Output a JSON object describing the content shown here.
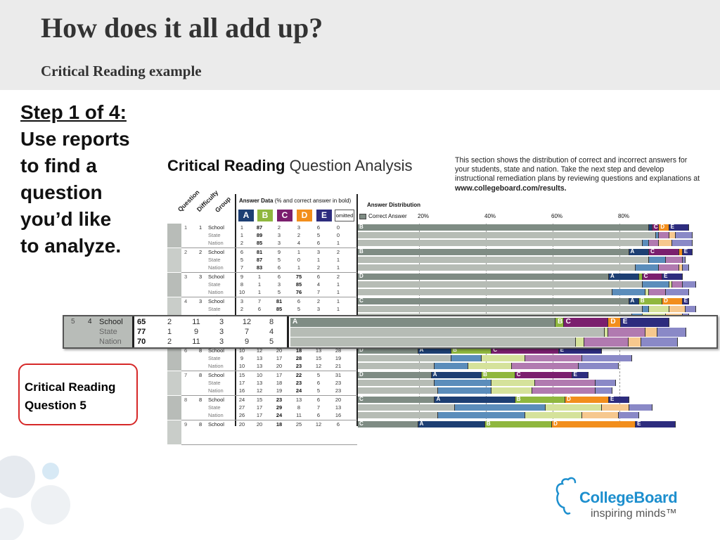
{
  "slide": {
    "title": "How does it all add up?",
    "subtitle": "Critical Reading example"
  },
  "step": {
    "heading": "Step 1 of 4:",
    "lines": [
      "Use reports",
      "to find a",
      "question",
      "you’d like",
      "to analyze."
    ]
  },
  "callout": {
    "lines": [
      "Critical Reading",
      "Question 5"
    ],
    "border_color": "#d62828"
  },
  "report": {
    "title_bold": "Critical Reading",
    "title_light": "Question Analysis",
    "description": "This section shows the distribution of correct and incorrect answers for your students, state and nation. Take the next step and develop instructional remediation plans by reviewing questions and explanations at",
    "url": "www.collegeboard.com/results.",
    "column_labels": {
      "question": "Question",
      "difficulty": "Difficulty",
      "group": "Group"
    },
    "answer_data_label": "Answer Data",
    "answer_data_note": "(% and correct answer in bold)",
    "answer_letters": [
      {
        "letter": "A",
        "color": "#1d3f73"
      },
      {
        "letter": "B",
        "color": "#8fb73e"
      },
      {
        "letter": "C",
        "color": "#7b1f6e"
      },
      {
        "letter": "D",
        "color": "#f28e1c"
      },
      {
        "letter": "E",
        "color": "#2d2c7e"
      }
    ],
    "omitted_label": "omitted",
    "distribution_label": "Answer Distribution",
    "legend_label": "Correct Answer",
    "ticks": [
      "20%",
      "40%",
      "60%",
      "80%"
    ],
    "rows": [
      {
        "q": "1",
        "d": "1",
        "groups": [
          {
            "name": "School",
            "vals": [
              "1",
              "87",
              "2",
              "3",
              "6",
              "0"
            ],
            "correct": 1
          },
          {
            "name": "State",
            "vals": [
              "1",
              "89",
              "3",
              "2",
              "5",
              "0"
            ],
            "correct": 1
          },
          {
            "name": "Nation",
            "vals": [
              "2",
              "85",
              "3",
              "4",
              "6",
              "1"
            ],
            "correct": 1
          }
        ]
      },
      {
        "q": "2",
        "d": "2",
        "groups": [
          {
            "name": "School",
            "vals": [
              "6",
              "81",
              "9",
              "1",
              "3",
              "2"
            ],
            "correct": 1
          },
          {
            "name": "State",
            "vals": [
              "5",
              "87",
              "5",
              "0",
              "1",
              "1"
            ],
            "correct": 1
          },
          {
            "name": "Nation",
            "vals": [
              "7",
              "83",
              "6",
              "1",
              "2",
              "1"
            ],
            "correct": 1
          }
        ]
      },
      {
        "q": "3",
        "d": "3",
        "groups": [
          {
            "name": "School",
            "vals": [
              "9",
              "1",
              "6",
              "75",
              "6",
              "2"
            ],
            "correct": 3
          },
          {
            "name": "State",
            "vals": [
              "8",
              "1",
              "3",
              "85",
              "4",
              "1"
            ],
            "correct": 3
          },
          {
            "name": "Nation",
            "vals": [
              "10",
              "1",
              "5",
              "76",
              "7",
              "1"
            ],
            "correct": 3
          }
        ]
      },
      {
        "q": "4",
        "d": "3",
        "groups": [
          {
            "name": "School",
            "vals": [
              "3",
              "7",
              "81",
              "6",
              "2",
              "1"
            ],
            "correct": 2
          },
          {
            "name": "State",
            "vals": [
              "2",
              "6",
              "85",
              "5",
              "3",
              "1"
            ],
            "correct": 2
          },
          {
            "name": "Nation",
            "vals": [
              "",
              "",
              "",
              "",
              "",
              ""
            ],
            "correct": -1
          }
        ]
      },
      {
        "q": "6",
        "d": "8",
        "groups": [
          {
            "name": "School",
            "vals": [
              "10",
              "12",
              "20",
              "18",
              "13",
              "28"
            ],
            "correct": 3
          },
          {
            "name": "State",
            "vals": [
              "9",
              "13",
              "17",
              "28",
              "15",
              "19"
            ],
            "correct": 3
          },
          {
            "name": "Nation",
            "vals": [
              "10",
              "13",
              "20",
              "23",
              "12",
              "21"
            ],
            "correct": 3
          }
        ]
      },
      {
        "q": "7",
        "d": "8",
        "groups": [
          {
            "name": "School",
            "vals": [
              "15",
              "10",
              "17",
              "22",
              "5",
              "31"
            ],
            "correct": 3
          },
          {
            "name": "State",
            "vals": [
              "17",
              "13",
              "18",
              "23",
              "6",
              "23"
            ],
            "correct": 3
          },
          {
            "name": "Nation",
            "vals": [
              "16",
              "12",
              "19",
              "24",
              "5",
              "23"
            ],
            "correct": 3
          }
        ]
      },
      {
        "q": "8",
        "d": "8",
        "groups": [
          {
            "name": "School",
            "vals": [
              "24",
              "15",
              "23",
              "13",
              "6",
              "20"
            ],
            "correct": 2
          },
          {
            "name": "State",
            "vals": [
              "27",
              "17",
              "29",
              "8",
              "7",
              "13"
            ],
            "correct": 2
          },
          {
            "name": "Nation",
            "vals": [
              "26",
              "17",
              "24",
              "11",
              "6",
              "16"
            ],
            "correct": 2
          }
        ]
      },
      {
        "q": "9",
        "d": "8",
        "groups": [
          {
            "name": "School",
            "vals": [
              "20",
              "20",
              "18",
              "25",
              "12",
              "6"
            ],
            "correct": 2
          }
        ]
      }
    ],
    "bars": [
      {
        "correct": "B",
        "school": [
          1,
          87,
          2,
          3,
          6
        ],
        "state": [
          1,
          89,
          3,
          2,
          5
        ],
        "nation": [
          2,
          85,
          3,
          4,
          6
        ]
      },
      {
        "correct": "B",
        "school": [
          6,
          81,
          9,
          1,
          3
        ],
        "state": [
          5,
          87,
          5,
          0,
          1
        ],
        "nation": [
          7,
          83,
          6,
          1,
          2
        ]
      },
      {
        "correct": "D",
        "school": [
          9,
          1,
          6,
          75,
          6
        ],
        "state": [
          8,
          1,
          3,
          85,
          4
        ],
        "nation": [
          10,
          1,
          5,
          76,
          7
        ]
      },
      {
        "correct": "C",
        "school": [
          3,
          7,
          81,
          6,
          2
        ],
        "state": [
          2,
          6,
          85,
          5,
          3
        ],
        "nation": [
          3,
          7,
          82,
          5,
          2
        ]
      },
      {
        "correct": "D",
        "school": [
          10,
          12,
          20,
          18,
          13
        ],
        "state": [
          9,
          13,
          17,
          28,
          15
        ],
        "nation": [
          10,
          13,
          20,
          23,
          12
        ]
      },
      {
        "correct": "D",
        "school": [
          15,
          10,
          17,
          22,
          5
        ],
        "state": [
          17,
          13,
          18,
          23,
          6
        ],
        "nation": [
          16,
          12,
          19,
          24,
          5
        ]
      },
      {
        "correct": "C",
        "school": [
          24,
          15,
          23,
          13,
          6
        ],
        "state": [
          27,
          17,
          29,
          8,
          7
        ],
        "nation": [
          26,
          17,
          24,
          11,
          6
        ]
      },
      {
        "correct": "C",
        "school": [
          20,
          20,
          18,
          25,
          12
        ]
      }
    ]
  },
  "highlight": {
    "q": "5",
    "d": "4",
    "groups": [
      {
        "name": "School",
        "vals": [
          "65",
          "2",
          "11",
          "3",
          "12",
          "8"
        ],
        "correct": 0
      },
      {
        "name": "State",
        "vals": [
          "77",
          "1",
          "9",
          "3",
          "7",
          "4"
        ],
        "correct": 0
      },
      {
        "name": "Nation",
        "vals": [
          "70",
          "2",
          "11",
          "3",
          "9",
          "5"
        ],
        "correct": 0
      }
    ],
    "correct": "A"
  },
  "logo": {
    "name": "CollegeBoard",
    "tagline": "inspiring minds™",
    "color": "#1d8fce"
  },
  "colors": {
    "correct": "#7f8c84",
    "correct_light": "#b6bcb5",
    "A": "#1d3f73",
    "A_light": "#5b8dbb",
    "B": "#8fb73e",
    "B_light": "#d5e29b",
    "C": "#7b1f6e",
    "C_light": "#b17ab0",
    "D": "#f28e1c",
    "D_light": "#f6c88e",
    "E": "#2d2c7e",
    "E_light": "#8a89c7"
  }
}
